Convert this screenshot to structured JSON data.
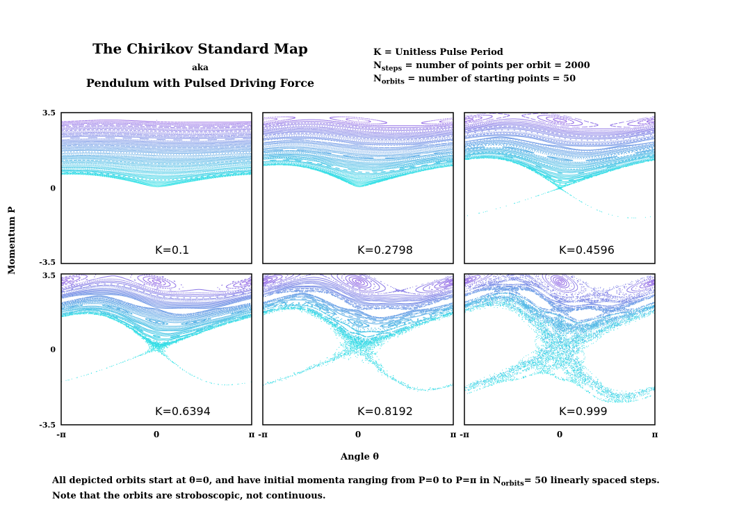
{
  "header": {
    "title": "The Chirikov Standard Map",
    "aka": "aka",
    "subtitle": "Pendulum with Pulsed Driving Force"
  },
  "definitions": {
    "k_def": "K = Unitless Pulse Period",
    "nsteps_n": "N",
    "nsteps_sub": "steps",
    "nsteps_rest": " = number of points per orbit = 2000",
    "norbits_n": "N",
    "norbits_sub": "orbits",
    "norbits_rest": " = number of starting points = 50"
  },
  "footer": {
    "line1_pre": "All depicted orbits start at θ=0, and have initial momenta ranging from P=0 to P=π in  N",
    "line1_sub": "orbits",
    "line1_post": "= 50 linearly spaced steps.",
    "line2": "Note that the orbits are stroboscopic, not continuous."
  },
  "colors": {
    "low_momentum": "#2ee6e6",
    "high_momentum": "#9b6be6",
    "frame": "#000000"
  },
  "chart_data": {
    "type": "scatter",
    "description_note": "",
    "xlabel": "Angle θ",
    "ylabel": "Momentum P",
    "xlim": [
      -3.14159,
      3.14159
    ],
    "ylim": [
      -3.5,
      3.5
    ],
    "x_ticks": [
      "-π",
      "0",
      "π"
    ],
    "y_ticks": [
      "3.5",
      "0",
      "-3.5"
    ],
    "grid": false,
    "n_steps": 2000,
    "n_orbits": 50,
    "initial_theta": 0,
    "initial_p_range": [
      0,
      3.14159
    ],
    "panels": [
      {
        "label": "K=0.1",
        "K": 0.1
      },
      {
        "label": "K=0.2798",
        "K": 0.2798
      },
      {
        "label": "K=0.4596",
        "K": 0.4596
      },
      {
        "label": "K=0.6394",
        "K": 0.6394
      },
      {
        "label": "K=0.8192",
        "K": 0.8192
      },
      {
        "label": "K=0.999",
        "K": 0.999
      }
    ]
  }
}
